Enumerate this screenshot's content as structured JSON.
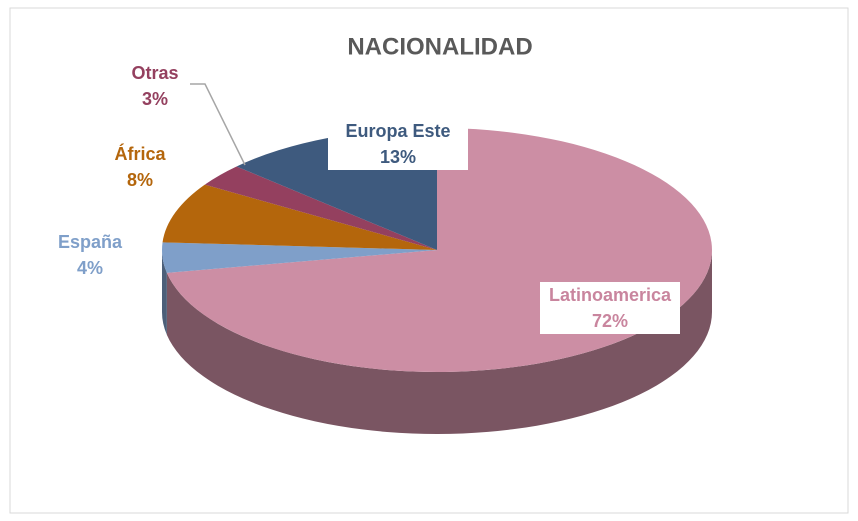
{
  "chart_data": {
    "type": "pie",
    "title": "NACIONALIDAD",
    "categories": [
      "Latinoamerica",
      "España",
      "África",
      "Otras",
      "Europa Este"
    ],
    "values": [
      72,
      4,
      8,
      3,
      13
    ],
    "value_labels": [
      "72%",
      "4%",
      "8%",
      "3%",
      "13%"
    ],
    "colors": [
      "#cc8ea4",
      "#7f9fc9",
      "#b4660c",
      "#94405f",
      "#3e5a7e"
    ]
  }
}
